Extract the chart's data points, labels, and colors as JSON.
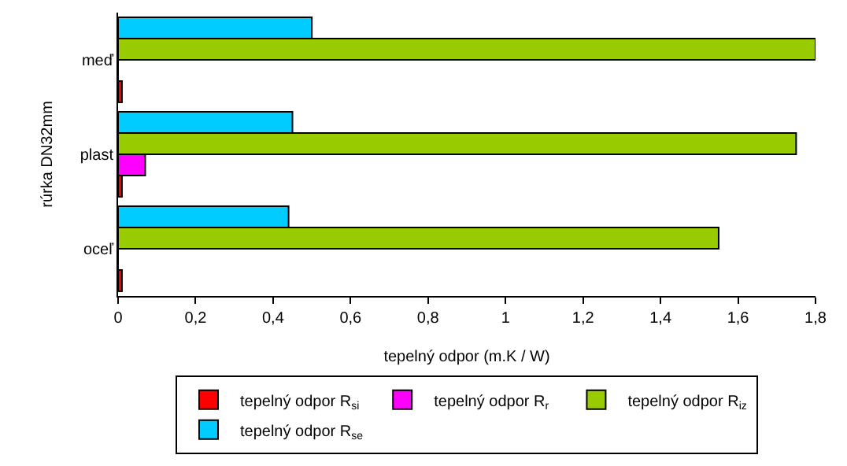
{
  "chart_data": {
    "type": "bar",
    "orientation": "horizontal",
    "xlabel": "tepelný odpor (m.K / W)",
    "ylabel": "rúrka DN32mm",
    "categories": [
      "meď",
      "plast",
      "oceľ"
    ],
    "series": [
      {
        "name": "tepelný odpor R$_{si}$",
        "color": "#ff0000",
        "values": [
          0.01,
          0.01,
          0.01
        ]
      },
      {
        "name": "tepelný odpor R$_{r}$",
        "color": "#ff00ff",
        "values": [
          0,
          0.07,
          0
        ]
      },
      {
        "name": "tepelný odpor R$_{iz}$",
        "color": "#99cc00",
        "values": [
          1.8,
          1.75,
          1.55
        ]
      },
      {
        "name": "tepelný odpor R$_{se}$",
        "color": "#00ccff",
        "values": [
          0.5,
          0.45,
          0.44
        ]
      }
    ],
    "xlim": [
      0,
      1.8
    ],
    "xticks": [
      0,
      {
        "value": 0.2,
        "label": "0,2"
      },
      {
        "value": 0.4,
        "label": "0,4"
      },
      {
        "value": 0.6,
        "label": "0,6"
      },
      {
        "value": 0.8,
        "label": "0,8"
      },
      1,
      {
        "value": 1.2,
        "label": "1,2"
      },
      {
        "value": 1.4,
        "label": "1,4"
      },
      {
        "value": 1.6,
        "label": "1,6"
      },
      {
        "value": 1.8,
        "label": "1,8"
      }
    ],
    "grid": false,
    "legend": "bottom"
  }
}
